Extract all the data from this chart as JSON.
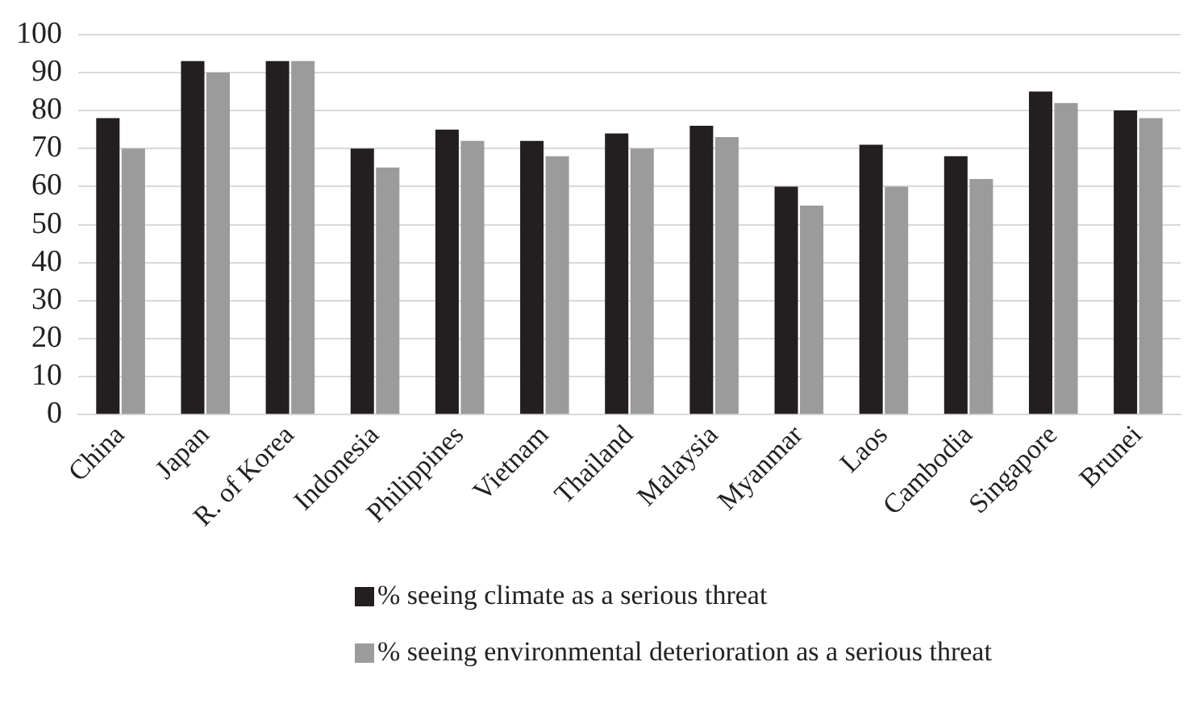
{
  "chart_data": {
    "type": "bar",
    "categories": [
      "China",
      "Japan",
      "R. of Korea",
      "Indonesia",
      "Philippines",
      "Vietnam",
      "Thailand",
      "Malaysia",
      "Myanmar",
      "Laos",
      "Cambodia",
      "Singapore",
      "Brunei"
    ],
    "series": [
      {
        "name": "% seeing climate as a serious threat",
        "color": "#231f20",
        "values": [
          78,
          93,
          93,
          70,
          75,
          72,
          74,
          76,
          60,
          71,
          68,
          85,
          80
        ]
      },
      {
        "name": "% seeing environmental deterioration as a serious threat",
        "color": "#9b9b9b",
        "values": [
          70,
          90,
          93,
          65,
          72,
          68,
          70,
          73,
          55,
          60,
          62,
          82,
          78
        ]
      }
    ],
    "ylim": [
      0,
      100
    ],
    "yticks": [
      0,
      10,
      20,
      30,
      40,
      50,
      60,
      70,
      80,
      90,
      100
    ],
    "grid": "y",
    "legend": "bottom"
  }
}
